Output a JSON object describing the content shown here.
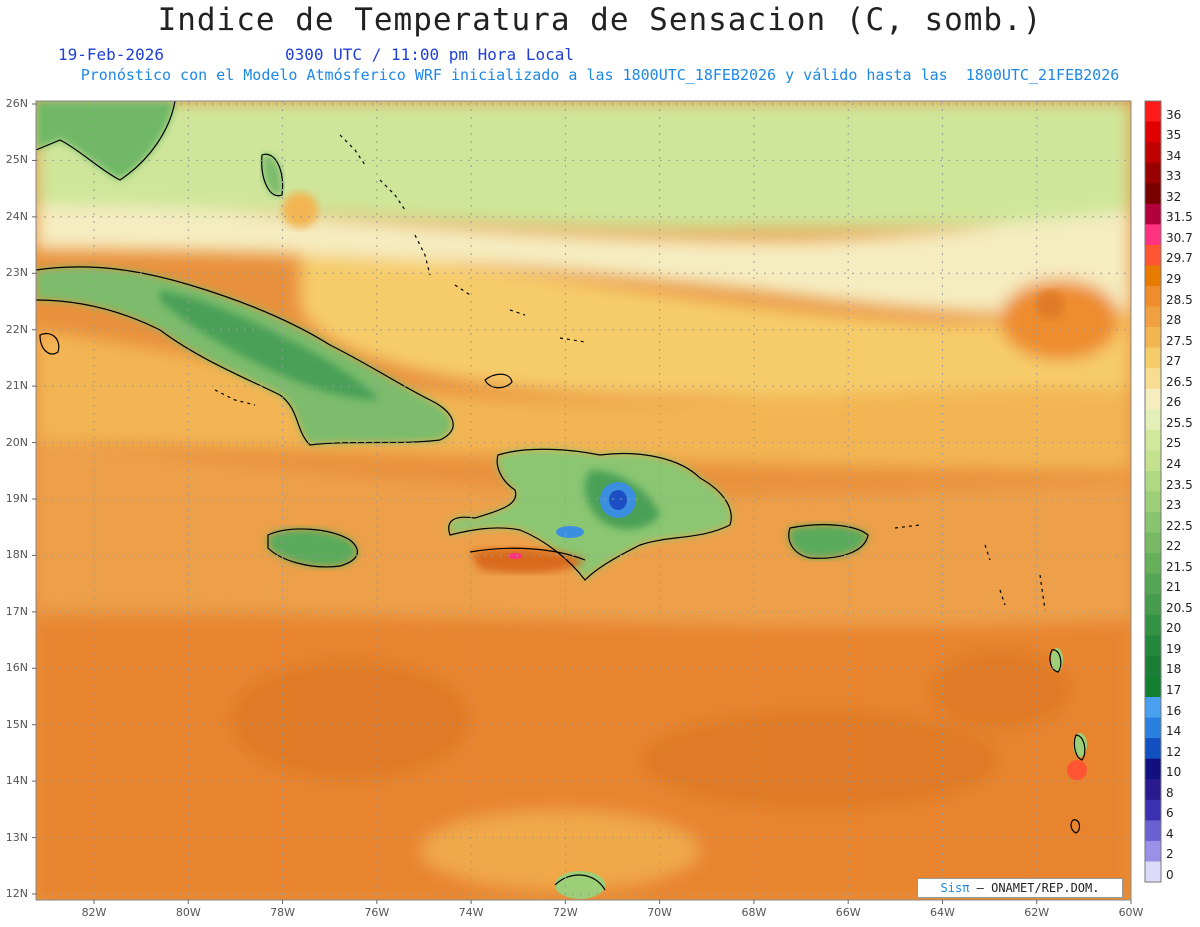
{
  "header": {
    "title": "Indice de Temperatura de Sensacion (C, somb.)",
    "date": "19-Feb-2026",
    "time": "0300 UTC / 11:00 pm Hora Local",
    "model_info": "Pronóstico con el Modelo Atmósferico WRF inicializado a las 1800UTC_18FEB2026 y válido hasta las  1800UTC_21FEB2026"
  },
  "axes": {
    "lat_labels": [
      "26N",
      "25N",
      "24N",
      "23N",
      "22N",
      "21N",
      "20N",
      "19N",
      "18N",
      "17N",
      "16N",
      "15N",
      "14N",
      "13N",
      "12N"
    ],
    "lon_labels": [
      "82W",
      "80W",
      "78W",
      "76W",
      "74W",
      "72W",
      "70W",
      "68W",
      "66W",
      "64W",
      "62W",
      "60W"
    ]
  },
  "colorbar": {
    "labels": [
      "36",
      "35",
      "34",
      "33",
      "32",
      "31.5",
      "30.7",
      "29.7",
      "29",
      "28.5",
      "28",
      "27.5",
      "27",
      "26.5",
      "26",
      "25.5",
      "25",
      "24",
      "23.5",
      "23",
      "22.5",
      "22",
      "21.5",
      "21",
      "20.5",
      "20",
      "19",
      "18",
      "17",
      "16",
      "14",
      "12",
      "10",
      "8",
      "6",
      "4",
      "2",
      "0"
    ],
    "colors": [
      "#ff1a1a",
      "#e00000",
      "#c00000",
      "#990000",
      "#7a0000",
      "#b3003c",
      "#ff3380",
      "#ff5533",
      "#e87a00",
      "#ee8c2e",
      "#f0a040",
      "#f3b552",
      "#f6cc6a",
      "#f7dc92",
      "#f5ecc0",
      "#e4efb8",
      "#d2e89c",
      "#c4e28e",
      "#b0d882",
      "#9ccf78",
      "#8ac46e",
      "#78ba64",
      "#66b05c",
      "#54a654",
      "#449c4c",
      "#349244",
      "#24883c",
      "#1a7e36",
      "#128030",
      "#4aa0f0",
      "#2a80e0",
      "#1050c0",
      "#101080",
      "#2a1a90",
      "#3a30b0",
      "#6a60d0",
      "#9a90e8",
      "#dcdcf8"
    ]
  },
  "credit": {
    "brand": "Sisπ",
    "text": " ONAMET/REP.DOM."
  }
}
